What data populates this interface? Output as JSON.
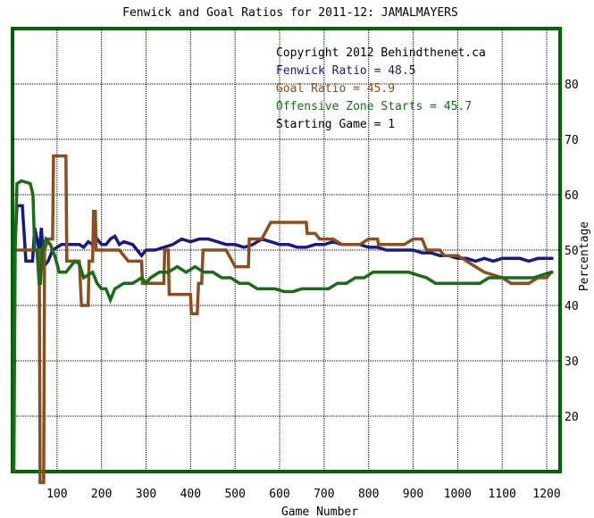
{
  "chart_data": {
    "type": "line",
    "title": "Fenwick and Goal Ratios for 2011-12: JAMALMAYERS",
    "xlabel": "Game Number",
    "ylabel": "Percentage",
    "xlim": [
      0,
      1230
    ],
    "ylim": [
      10,
      90
    ],
    "xticks": [
      100,
      200,
      300,
      400,
      500,
      600,
      700,
      800,
      900,
      1000,
      1100,
      1200
    ],
    "yticks": [
      20,
      30,
      40,
      50,
      60,
      70,
      80
    ],
    "grid": true,
    "legend_position": "top-right",
    "colors": {
      "border": "#006400",
      "grid": "#000000",
      "fenwick": "#1a1a80",
      "goal": "#8b4e1e",
      "ozs": "#1a6b1a"
    },
    "annotations": [
      {
        "text": "Copyright 2012 Behindthenet.ca",
        "color": "#000000"
      },
      {
        "text": "Fenwick Ratio = 48.5",
        "color": "#1a1a80"
      },
      {
        "text": "Goal Ratio = 45.9",
        "color": "#8b4e1e"
      },
      {
        "text": "Offensive Zone Starts = 45.7",
        "color": "#1a6b1a"
      },
      {
        "text": "Starting Game = 1",
        "color": "#000000"
      }
    ],
    "series": [
      {
        "name": "Fenwick Ratio",
        "color": "#1a1a80",
        "points": [
          [
            5,
            50
          ],
          [
            10,
            58
          ],
          [
            22,
            58
          ],
          [
            30,
            48
          ],
          [
            45,
            48
          ],
          [
            50,
            54
          ],
          [
            60,
            50
          ],
          [
            65,
            54
          ],
          [
            70,
            47
          ],
          [
            80,
            48
          ],
          [
            90,
            50
          ],
          [
            110,
            51
          ],
          [
            130,
            51
          ],
          [
            150,
            51
          ],
          [
            160,
            50.5
          ],
          [
            170,
            51.5
          ],
          [
            180,
            51
          ],
          [
            190,
            52
          ],
          [
            200,
            51
          ],
          [
            210,
            51
          ],
          [
            220,
            52
          ],
          [
            230,
            52.5
          ],
          [
            240,
            51
          ],
          [
            250,
            51.5
          ],
          [
            270,
            51
          ],
          [
            280,
            50
          ],
          [
            290,
            49
          ],
          [
            300,
            50
          ],
          [
            320,
            50
          ],
          [
            340,
            50.5
          ],
          [
            360,
            51
          ],
          [
            380,
            52
          ],
          [
            400,
            51.5
          ],
          [
            420,
            52
          ],
          [
            440,
            52
          ],
          [
            460,
            51.5
          ],
          [
            480,
            51
          ],
          [
            500,
            51
          ],
          [
            520,
            50.5
          ],
          [
            540,
            51
          ],
          [
            560,
            52
          ],
          [
            580,
            51.5
          ],
          [
            600,
            51
          ],
          [
            620,
            51
          ],
          [
            640,
            50.5
          ],
          [
            660,
            50.5
          ],
          [
            680,
            51
          ],
          [
            700,
            51
          ],
          [
            720,
            51.5
          ],
          [
            740,
            51
          ],
          [
            760,
            51
          ],
          [
            780,
            51
          ],
          [
            800,
            50.5
          ],
          [
            820,
            50.5
          ],
          [
            840,
            50
          ],
          [
            860,
            50
          ],
          [
            880,
            50
          ],
          [
            900,
            50
          ],
          [
            920,
            49.5
          ],
          [
            940,
            49.5
          ],
          [
            960,
            49
          ],
          [
            980,
            49
          ],
          [
            1000,
            48.5
          ],
          [
            1020,
            48.5
          ],
          [
            1040,
            48
          ],
          [
            1060,
            48.5
          ],
          [
            1080,
            48
          ],
          [
            1100,
            48.5
          ],
          [
            1120,
            48.5
          ],
          [
            1140,
            48.5
          ],
          [
            1160,
            48
          ],
          [
            1180,
            48.5
          ],
          [
            1200,
            48.5
          ],
          [
            1215,
            48.5
          ]
        ]
      },
      {
        "name": "Goal Ratio",
        "color": "#8b4e1e",
        "points": [
          [
            3,
            50
          ],
          [
            10,
            50
          ],
          [
            20,
            50
          ],
          [
            30,
            50
          ],
          [
            40,
            50
          ],
          [
            60,
            50
          ],
          [
            62,
            0
          ],
          [
            70,
            0
          ],
          [
            72,
            50
          ],
          [
            80,
            52
          ],
          [
            90,
            52
          ],
          [
            92,
            67
          ],
          [
            120,
            67
          ],
          [
            122,
            48
          ],
          [
            140,
            48
          ],
          [
            150,
            48
          ],
          [
            155,
            40
          ],
          [
            170,
            40
          ],
          [
            172,
            48
          ],
          [
            180,
            48
          ],
          [
            182,
            57
          ],
          [
            186,
            57
          ],
          [
            188,
            50
          ],
          [
            200,
            50
          ],
          [
            240,
            50
          ],
          [
            260,
            48
          ],
          [
            290,
            48
          ],
          [
            292,
            44
          ],
          [
            340,
            44
          ],
          [
            342,
            50
          ],
          [
            350,
            50
          ],
          [
            352,
            42
          ],
          [
            400,
            42
          ],
          [
            402,
            38.5
          ],
          [
            415,
            38.5
          ],
          [
            418,
            44
          ],
          [
            425,
            44
          ],
          [
            428,
            50
          ],
          [
            480,
            50
          ],
          [
            500,
            47
          ],
          [
            530,
            47
          ],
          [
            532,
            52
          ],
          [
            560,
            52
          ],
          [
            580,
            55
          ],
          [
            660,
            55
          ],
          [
            662,
            53
          ],
          [
            680,
            53
          ],
          [
            690,
            52
          ],
          [
            700,
            52
          ],
          [
            720,
            52
          ],
          [
            740,
            51
          ],
          [
            780,
            51
          ],
          [
            800,
            52
          ],
          [
            820,
            52
          ],
          [
            822,
            51
          ],
          [
            840,
            51
          ],
          [
            860,
            51
          ],
          [
            880,
            51
          ],
          [
            900,
            52
          ],
          [
            920,
            52
          ],
          [
            930,
            50
          ],
          [
            960,
            50
          ],
          [
            970,
            49
          ],
          [
            1000,
            49
          ],
          [
            1040,
            47
          ],
          [
            1060,
            46
          ],
          [
            1100,
            45
          ],
          [
            1120,
            44
          ],
          [
            1140,
            44
          ],
          [
            1160,
            44
          ],
          [
            1180,
            45
          ],
          [
            1200,
            45
          ],
          [
            1210,
            46
          ],
          [
            1215,
            46
          ]
        ]
      },
      {
        "name": "Offensive Zone Starts",
        "color": "#1a6b1a",
        "points": [
          [
            3,
            10
          ],
          [
            6,
            50
          ],
          [
            10,
            62
          ],
          [
            20,
            62.5
          ],
          [
            40,
            62
          ],
          [
            46,
            60
          ],
          [
            50,
            50
          ],
          [
            55,
            50
          ],
          [
            60,
            44
          ],
          [
            63,
            44
          ],
          [
            67,
            50
          ],
          [
            75,
            52
          ],
          [
            85,
            51
          ],
          [
            95,
            49
          ],
          [
            105,
            46
          ],
          [
            120,
            46
          ],
          [
            140,
            48
          ],
          [
            150,
            47.5
          ],
          [
            160,
            45
          ],
          [
            180,
            46
          ],
          [
            190,
            44
          ],
          [
            200,
            43
          ],
          [
            210,
            43
          ],
          [
            220,
            41
          ],
          [
            230,
            43
          ],
          [
            250,
            44
          ],
          [
            270,
            44
          ],
          [
            290,
            45
          ],
          [
            300,
            44
          ],
          [
            310,
            45
          ],
          [
            330,
            46
          ],
          [
            350,
            46
          ],
          [
            370,
            47
          ],
          [
            390,
            46
          ],
          [
            410,
            47
          ],
          [
            430,
            46
          ],
          [
            450,
            46
          ],
          [
            470,
            45
          ],
          [
            490,
            45
          ],
          [
            510,
            44
          ],
          [
            530,
            44
          ],
          [
            550,
            43
          ],
          [
            570,
            43
          ],
          [
            590,
            43
          ],
          [
            610,
            42.5
          ],
          [
            630,
            42.5
          ],
          [
            650,
            43
          ],
          [
            670,
            43
          ],
          [
            690,
            43
          ],
          [
            710,
            43
          ],
          [
            730,
            44
          ],
          [
            750,
            44
          ],
          [
            770,
            45
          ],
          [
            790,
            45
          ],
          [
            810,
            46
          ],
          [
            830,
            46
          ],
          [
            850,
            46
          ],
          [
            870,
            46
          ],
          [
            890,
            46
          ],
          [
            910,
            45.5
          ],
          [
            930,
            45
          ],
          [
            950,
            44
          ],
          [
            970,
            44
          ],
          [
            990,
            44
          ],
          [
            1010,
            44
          ],
          [
            1030,
            44
          ],
          [
            1050,
            44
          ],
          [
            1070,
            45
          ],
          [
            1090,
            45
          ],
          [
            1110,
            45
          ],
          [
            1130,
            45
          ],
          [
            1150,
            45
          ],
          [
            1170,
            45
          ],
          [
            1190,
            45.5
          ],
          [
            1210,
            46
          ],
          [
            1215,
            46
          ]
        ]
      }
    ]
  }
}
